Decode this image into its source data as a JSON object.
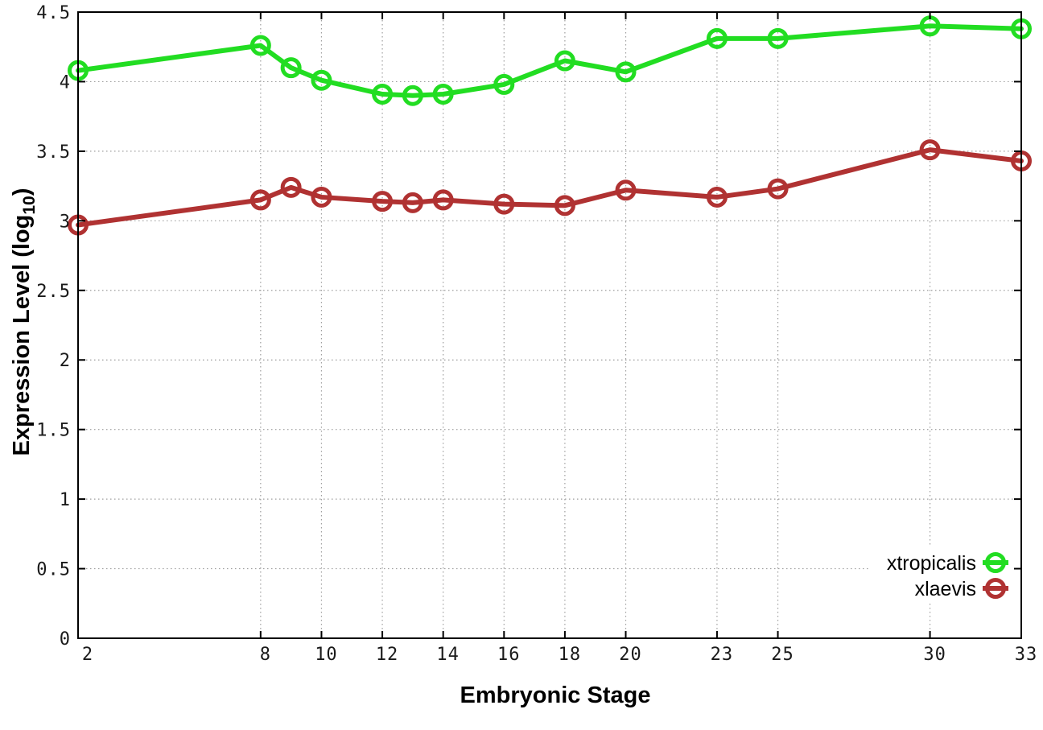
{
  "chart_data": {
    "type": "line",
    "title": "",
    "xlabel": "Embryonic Stage",
    "ylabel": {
      "main": "Expression Level (log",
      "subscript": "10",
      "suffix": ")",
      "plain": "Expression Level (log10)"
    },
    "xlim": [
      2,
      33
    ],
    "ylim": [
      0,
      4.5
    ],
    "grid": true,
    "legend_position": "bottom-right",
    "xtick_values": [
      2,
      8,
      10,
      12,
      14,
      16,
      18,
      20,
      23,
      25,
      30,
      33
    ],
    "xtick_labels": [
      "2",
      "8",
      "10",
      "12",
      "14",
      "16",
      "18",
      "20",
      "23",
      "25",
      "30",
      "33"
    ],
    "ytick_values": [
      0,
      0.5,
      1,
      1.5,
      2,
      2.5,
      3,
      3.5,
      4,
      4.5
    ],
    "ytick_labels": [
      "0",
      "0.5",
      "1",
      "1.5",
      "2",
      "2.5",
      "3",
      "3.5",
      "4",
      "4.5"
    ],
    "x": [
      2,
      8,
      9,
      10,
      12,
      13,
      14,
      16,
      18,
      20,
      23,
      25,
      30,
      33
    ],
    "series": [
      {
        "name": "xtropicalis",
        "color": "#22dd22",
        "values": [
          4.08,
          4.26,
          4.1,
          4.01,
          3.91,
          3.9,
          3.91,
          3.98,
          4.15,
          4.07,
          4.31,
          4.31,
          4.4,
          4.38
        ]
      },
      {
        "name": "xlaevis",
        "color": "#b03232",
        "values": [
          2.97,
          3.15,
          3.24,
          3.17,
          3.14,
          3.13,
          3.15,
          3.12,
          3.11,
          3.22,
          3.17,
          3.23,
          3.51,
          3.43
        ]
      }
    ],
    "colors": {
      "grid": "#9e9e9e",
      "axis": "#000000",
      "tick_text": "#1a1a1a",
      "background": "#ffffff"
    }
  }
}
